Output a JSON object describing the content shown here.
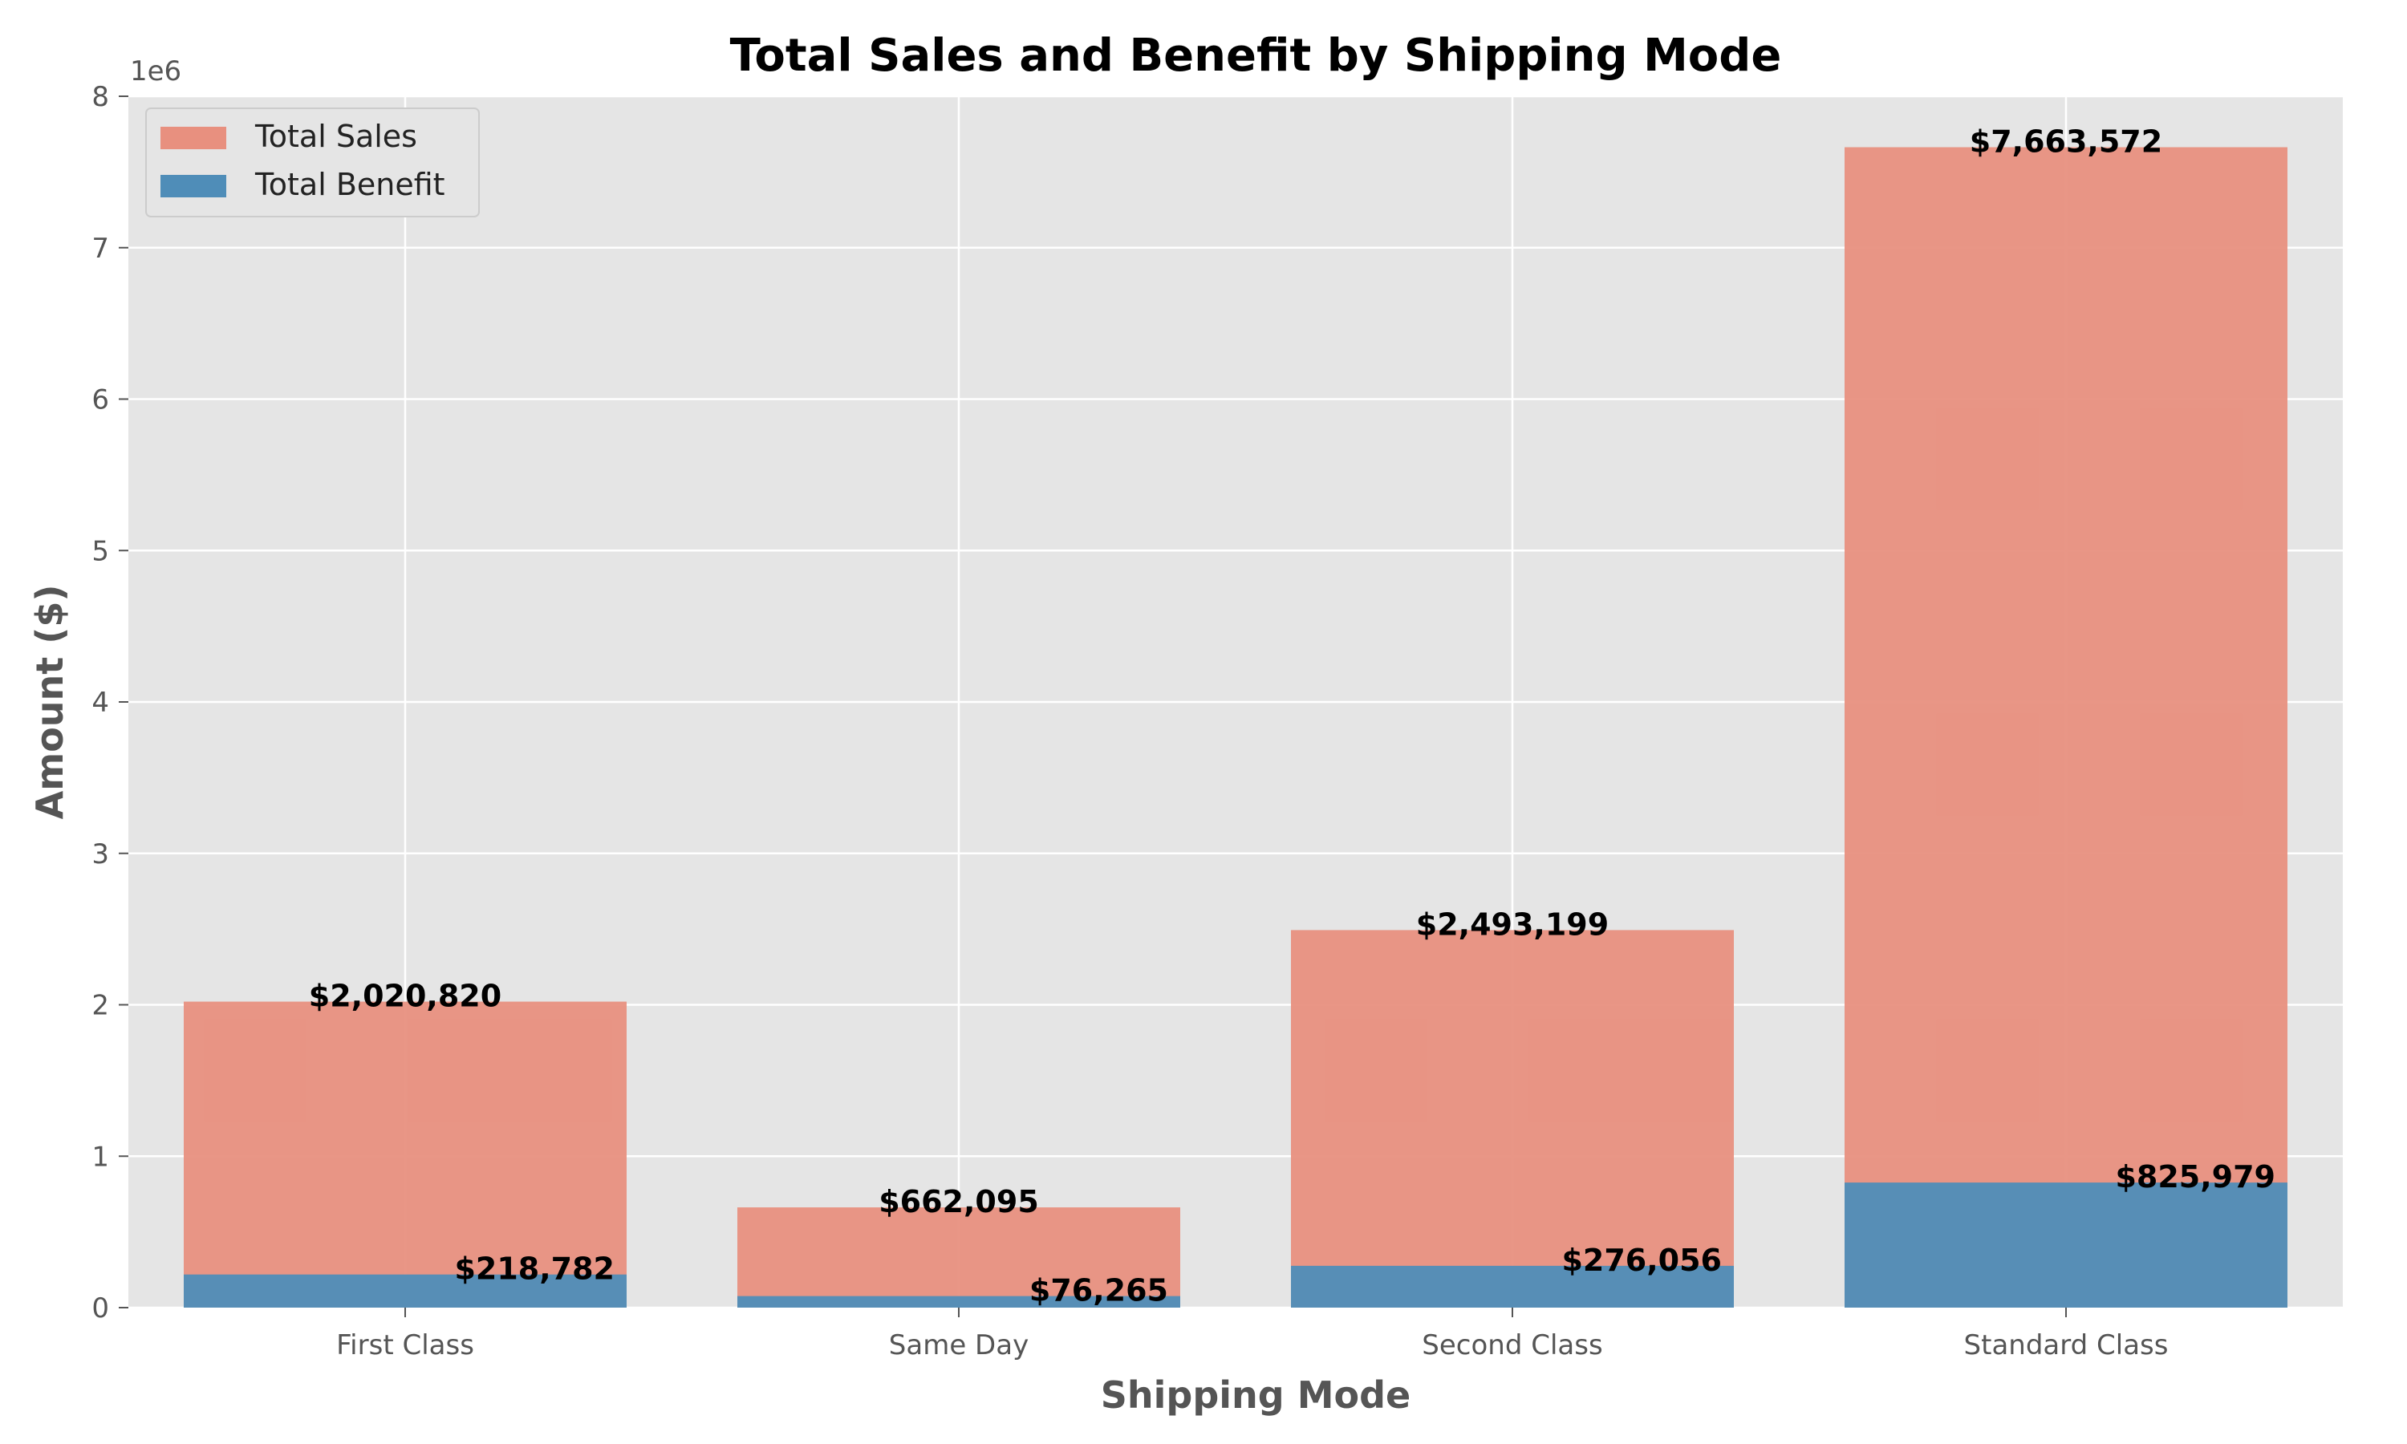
{
  "chart_data": {
    "type": "bar",
    "title": "Total Sales and Benefit by Shipping Mode",
    "xlabel": "Shipping Mode",
    "ylabel": "Amount ($)",
    "y_offset_label": "1e6",
    "categories": [
      "First Class",
      "Same Day",
      "Second Class",
      "Standard Class"
    ],
    "ylim": [
      0,
      8000000
    ],
    "yticks": [
      0,
      1000000,
      2000000,
      3000000,
      4000000,
      5000000,
      6000000,
      7000000,
      8000000
    ],
    "ytick_labels": [
      "0",
      "1",
      "2",
      "3",
      "4",
      "5",
      "6",
      "7",
      "8"
    ],
    "grid": true,
    "legend_position": "top-left",
    "series": [
      {
        "name": "Total Sales",
        "color": "#E8907F",
        "values": [
          2020820,
          662095,
          2493199,
          7663572
        ],
        "labels": [
          "$2,020,820",
          "$662,095",
          "$2,493,199",
          "$7,663,572"
        ]
      },
      {
        "name": "Total Benefit",
        "color": "#4F8DB8",
        "values": [
          218782,
          76265,
          276056,
          825979
        ],
        "labels": [
          "$218,782",
          "$76,265",
          "$276,056",
          "$825,979"
        ]
      }
    ]
  }
}
